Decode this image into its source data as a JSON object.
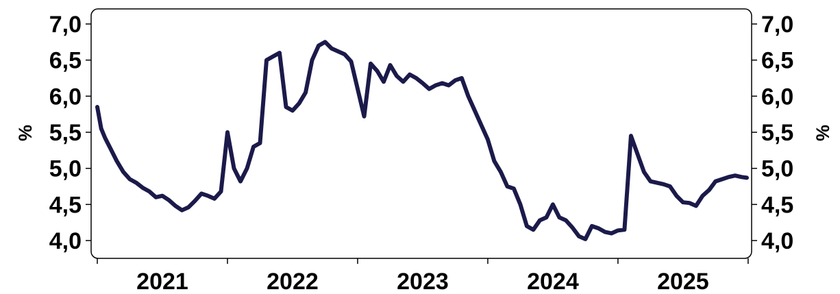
{
  "chart_data": {
    "type": "line",
    "title": "",
    "ylabel_left": "%",
    "ylabel_right": "%",
    "ylim": [
      3.9,
      7.1
    ],
    "yticks": [
      4.0,
      4.5,
      5.0,
      5.5,
      6.0,
      6.5,
      7.0
    ],
    "ytick_labels": [
      "4,0",
      "4,5",
      "5,0",
      "5,5",
      "6,0",
      "6,5",
      "7,0"
    ],
    "xlim": [
      2021.0,
      2025.99
    ],
    "xticks": [
      2021,
      2022,
      2023,
      2024,
      2025,
      2026
    ],
    "x_category_labels": [
      {
        "x": 2021.5,
        "label": "2021"
      },
      {
        "x": 2022.5,
        "label": "2022"
      },
      {
        "x": 2023.5,
        "label": "2023"
      },
      {
        "x": 2024.5,
        "label": "2024"
      },
      {
        "x": 2025.5,
        "label": "2025"
      }
    ],
    "line_color": "#1b1a4a",
    "grid": false,
    "legend": "none",
    "series": [
      {
        "x": [
          2021.0,
          2021.03,
          2021.06,
          2021.1,
          2021.15,
          2021.2,
          2021.25,
          2021.3,
          2021.35,
          2021.4,
          2021.45,
          2021.5,
          2021.55,
          2021.6,
          2021.65,
          2021.7,
          2021.75,
          2021.8,
          2021.85,
          2021.9,
          2021.95,
          2022.0,
          2022.05,
          2022.1,
          2022.15,
          2022.2,
          2022.25,
          2022.3,
          2022.35,
          2022.4,
          2022.45,
          2022.5,
          2022.55,
          2022.6,
          2022.65,
          2022.7,
          2022.75,
          2022.8,
          2022.85,
          2022.9,
          2022.95,
          2023.0,
          2023.05,
          2023.1,
          2023.15,
          2023.2,
          2023.25,
          2023.3,
          2023.35,
          2023.4,
          2023.45,
          2023.5,
          2023.55,
          2023.6,
          2023.65,
          2023.7,
          2023.75,
          2023.8,
          2023.85,
          2023.9,
          2023.95,
          2024.0,
          2024.05,
          2024.1,
          2024.15,
          2024.2,
          2024.25,
          2024.3,
          2024.35,
          2024.4,
          2024.45,
          2024.5,
          2024.55,
          2024.6,
          2024.65,
          2024.7,
          2024.75,
          2024.8,
          2024.85,
          2024.9,
          2024.95,
          2025.0,
          2025.05,
          2025.1,
          2025.15,
          2025.2,
          2025.25,
          2025.3,
          2025.35,
          2025.4,
          2025.45,
          2025.5,
          2025.55,
          2025.6,
          2025.65,
          2025.7,
          2025.75,
          2025.8,
          2025.85,
          2025.9,
          2025.95,
          2025.99
        ],
        "y": [
          5.85,
          5.55,
          5.42,
          5.28,
          5.1,
          4.95,
          4.85,
          4.8,
          4.73,
          4.68,
          4.6,
          4.62,
          4.56,
          4.48,
          4.42,
          4.46,
          4.55,
          4.65,
          4.62,
          4.58,
          4.68,
          5.5,
          5.0,
          4.82,
          5.0,
          5.3,
          5.35,
          6.5,
          6.55,
          6.6,
          5.85,
          5.8,
          5.9,
          6.05,
          6.5,
          6.7,
          6.75,
          6.66,
          6.62,
          6.58,
          6.48,
          6.1,
          5.72,
          6.45,
          6.35,
          6.2,
          6.43,
          6.28,
          6.2,
          6.3,
          6.25,
          6.18,
          6.1,
          6.15,
          6.18,
          6.15,
          6.22,
          6.25,
          6.0,
          5.8,
          5.6,
          5.4,
          5.1,
          4.95,
          4.75,
          4.72,
          4.5,
          4.2,
          4.15,
          4.28,
          4.32,
          4.5,
          4.32,
          4.28,
          4.18,
          4.06,
          4.02,
          4.2,
          4.17,
          4.12,
          4.1,
          4.14,
          4.15,
          5.45,
          5.2,
          4.95,
          4.82,
          4.8,
          4.78,
          4.75,
          4.62,
          4.53,
          4.52,
          4.48,
          4.62,
          4.7,
          4.82,
          4.85,
          4.88,
          4.9,
          4.88,
          4.87
        ]
      }
    ]
  }
}
